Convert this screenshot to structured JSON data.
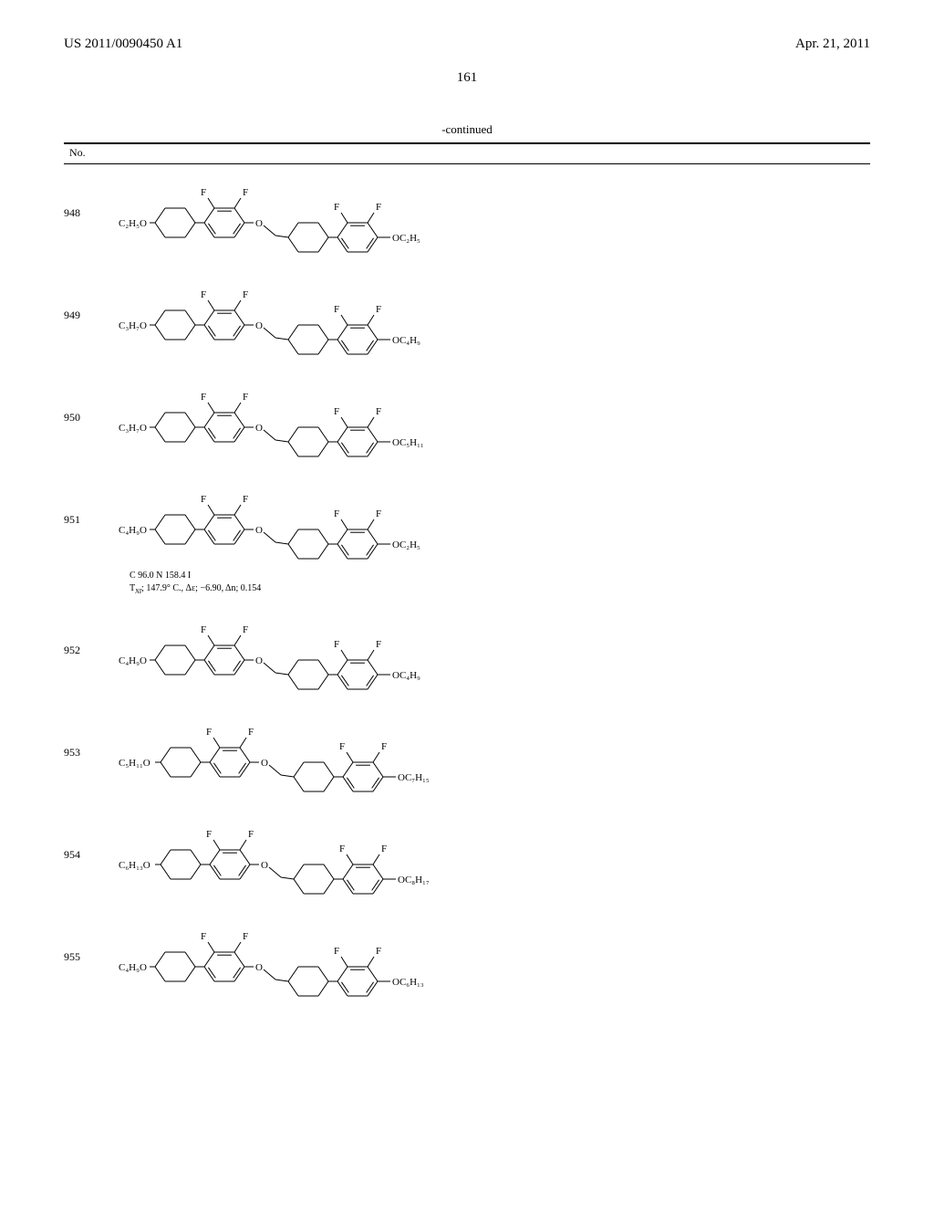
{
  "header": {
    "left": "US 2011/0090450 A1",
    "right": "Apr. 21, 2011"
  },
  "page_number": "161",
  "table_caption": "-continued",
  "no_label": "No.",
  "compounds": [
    {
      "no": "948",
      "left_group": "C₂H₅O",
      "right_group": "OC₂H₅",
      "props": null
    },
    {
      "no": "949",
      "left_group": "C₃H₇O",
      "right_group": "OC₄H₉",
      "props": null
    },
    {
      "no": "950",
      "left_group": "C₃H₇O",
      "right_group": "OC₅H₁₁",
      "props": null
    },
    {
      "no": "951",
      "left_group": "C₄H₉O",
      "right_group": "OC₂H₅",
      "props": {
        "line1": "C 96.0 N 158.4 I",
        "line2": "T_{NI}; 147.9° C., Δε; −6.90, Δn; 0.154"
      }
    },
    {
      "no": "952",
      "left_group": "C₄H₉O",
      "right_group": "OC₄H₉",
      "props": null
    },
    {
      "no": "953",
      "left_group": "C₅H₁₁O",
      "right_group": "OC₇H₁₅",
      "props": null
    },
    {
      "no": "954",
      "left_group": "C₆H₁₃O",
      "right_group": "OC₈H₁₇",
      "props": null
    },
    {
      "no": "955",
      "left_group": "C₄H₉O",
      "right_group": "OC₆H₁₃",
      "props": null
    }
  ],
  "styling": {
    "bg": "#ffffff",
    "stroke": "#000000",
    "stroke_width": 1.0,
    "font_size_formula": 11,
    "font_size_atom": 11
  }
}
